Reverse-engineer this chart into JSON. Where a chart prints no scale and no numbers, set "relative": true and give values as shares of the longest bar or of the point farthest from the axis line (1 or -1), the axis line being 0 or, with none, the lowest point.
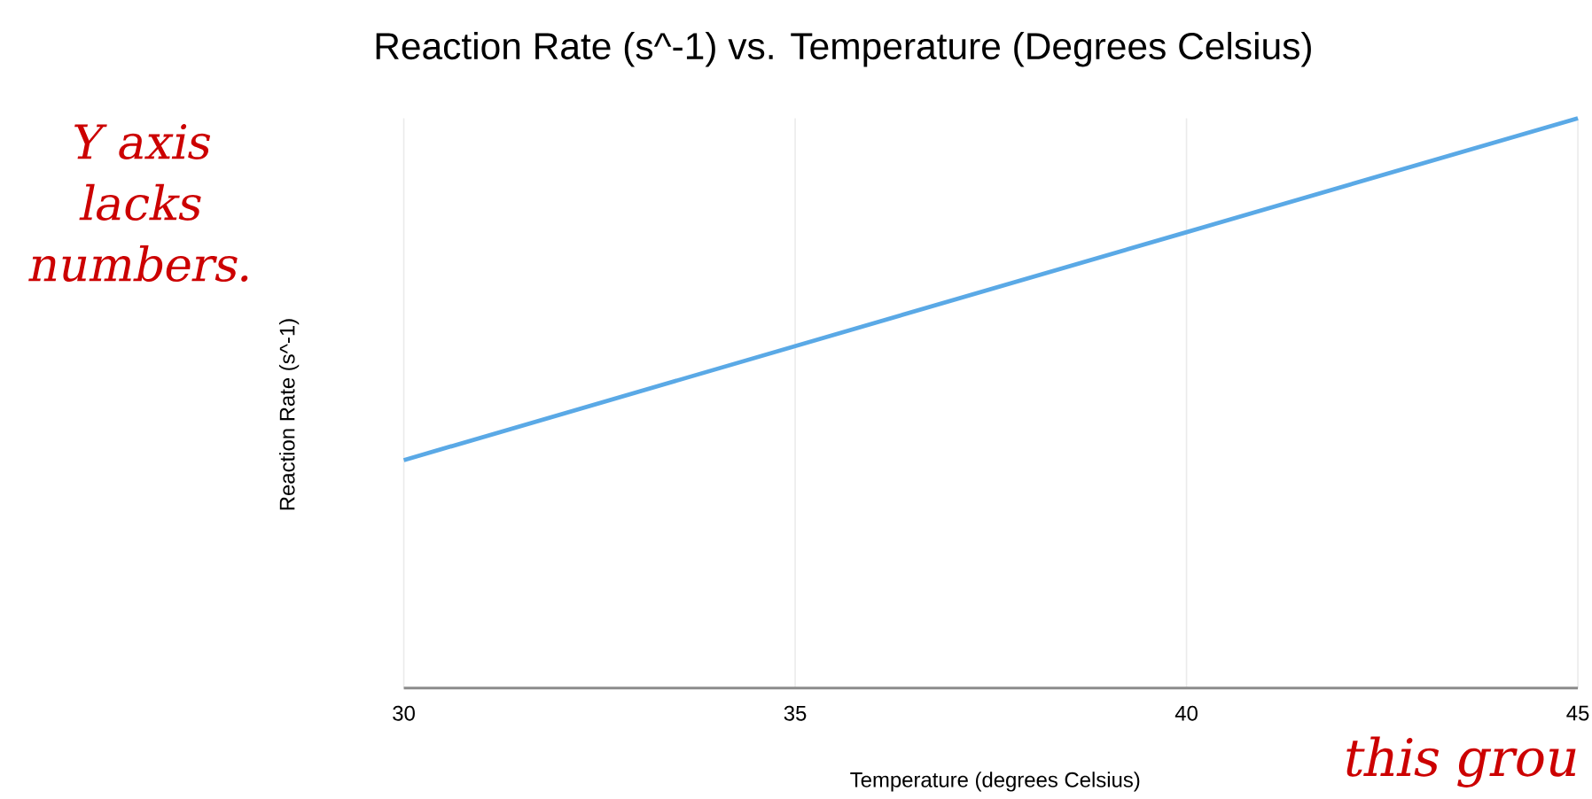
{
  "chart_data": {
    "type": "line",
    "title": "Reaction Rate (s^-1) vs. Temperature (Degrees Celsius)",
    "xlabel": "Temperature (degrees Celsius)",
    "ylabel": "Reaction Rate (s^-1)",
    "relative": true,
    "x": [
      30,
      35,
      40,
      45
    ],
    "series": [
      {
        "color": "#5aa9e6",
        "values": [
          0.4,
          0.6,
          0.8,
          1.0
        ]
      }
    ],
    "xlim": [
      30,
      45
    ],
    "xticks": [
      30,
      35,
      40,
      45
    ],
    "grid": "x",
    "annotations": [
      "Y axis lacks numbers.",
      "this grou"
    ]
  }
}
